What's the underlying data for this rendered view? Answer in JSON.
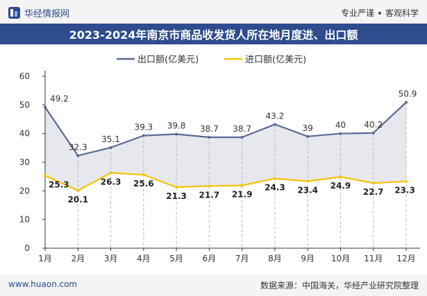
{
  "header": {
    "brand": "华经情报网",
    "slogan_left": "专业严谨",
    "slogan_right": "客观科学",
    "logo_icon": "huajing-logo-icon"
  },
  "title": "2023-2024年南京市商品收发货人所在地月度进、出口额",
  "footer": {
    "site": "www.huaon.com",
    "source": "数据来源：中国海关，华经产业研究院整理"
  },
  "colors": {
    "export": "#5a6a90",
    "import": "#f5c200",
    "band": "#e6e8ee",
    "title_bg": "#2e4c8e"
  },
  "chart_data": {
    "type": "line",
    "categories": [
      "1月",
      "2月",
      "3月",
      "4月",
      "5月",
      "6月",
      "7月",
      "8月",
      "9月",
      "10月",
      "11月",
      "12月"
    ],
    "series": [
      {
        "name": "出口额(亿美元)",
        "values": [
          49.2,
          32.3,
          35.1,
          39.3,
          39.8,
          38.7,
          38.7,
          43.2,
          39,
          40,
          40.2,
          50.9
        ]
      },
      {
        "name": "进口额(亿美元)",
        "values": [
          25.3,
          20.1,
          26.3,
          25.6,
          21.3,
          21.7,
          21.9,
          24.3,
          23.4,
          24.9,
          22.7,
          23.3
        ]
      }
    ],
    "ylim": [
      0,
      60
    ],
    "yticks": [
      0,
      10,
      20,
      30,
      40,
      50,
      60
    ],
    "legend_position": "top-center",
    "grid": false
  }
}
